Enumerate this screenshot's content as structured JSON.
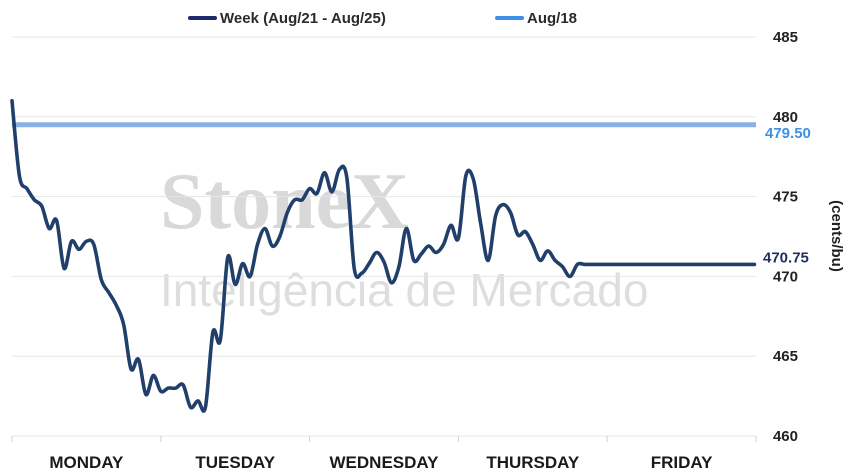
{
  "watermark": {
    "brand": "StoneX",
    "tagline": "Inteligência de Mercado"
  },
  "chart_data": {
    "type": "line",
    "ylabel": "(cents/bu)",
    "ylim": [
      460,
      485
    ],
    "yticks": [
      460,
      465,
      470,
      475,
      480,
      485
    ],
    "categories": [
      "MONDAY",
      "TUESDAY",
      "WEDNESDAY",
      "THURSDAY",
      "FRIDAY"
    ],
    "legend_position": "top",
    "grid": true,
    "series": [
      {
        "name": "Week (Aug/21 - Aug/25)",
        "color": "#213f6b",
        "end_label": "470.75",
        "x": [
          0,
          0.05,
          0.1,
          0.15,
          0.2,
          0.25,
          0.3,
          0.35,
          0.4,
          0.45,
          0.5,
          0.55,
          0.6,
          0.65,
          0.7,
          0.75,
          0.8,
          0.85,
          0.9,
          0.95,
          1.0,
          1.05,
          1.1,
          1.15,
          1.2,
          1.25,
          1.3,
          1.35,
          1.4,
          1.45,
          1.5,
          1.55,
          1.6,
          1.65,
          1.7,
          1.75,
          1.8,
          1.85,
          1.9,
          1.95,
          2.0,
          2.05,
          2.1,
          2.15,
          2.2,
          2.25,
          2.3,
          2.35,
          2.4,
          2.45,
          2.5,
          2.55,
          2.6,
          2.65,
          2.7,
          2.75,
          2.8,
          2.85,
          2.9,
          2.95,
          3.0,
          3.05,
          3.1,
          3.15,
          3.2,
          3.25,
          3.3,
          3.35,
          3.4,
          3.45,
          3.5,
          3.55,
          3.6,
          3.65,
          3.7,
          3.75,
          3.8,
          3.85,
          3.9,
          3.95,
          4.0,
          4.05,
          4.1,
          4.15,
          4.2,
          4.25,
          4.3,
          4.35,
          4.4,
          4.45,
          4.5,
          4.55,
          4.6,
          4.65,
          4.7,
          4.75,
          4.8,
          4.85,
          4.9,
          4.95,
          4.99
        ],
        "values": [
          481.0,
          476.3,
          475.5,
          474.8,
          474.4,
          473.0,
          473.5,
          470.5,
          472.2,
          471.7,
          472.2,
          472.0,
          469.8,
          469.0,
          468.2,
          467.0,
          464.2,
          464.8,
          462.6,
          463.8,
          462.8,
          463.0,
          463.0,
          463.2,
          461.8,
          462.2,
          461.8,
          466.5,
          466.0,
          471.2,
          469.5,
          470.8,
          470.0,
          472.0,
          473.0,
          471.9,
          472.5,
          474.0,
          474.8,
          474.8,
          475.5,
          475.2,
          476.5,
          475.3,
          476.7,
          476.2,
          470.5,
          470.2,
          470.8,
          471.5,
          470.9,
          469.6,
          470.6,
          473.0,
          471.0,
          471.4,
          471.9,
          471.5,
          472.0,
          473.2,
          472.4,
          476.3,
          476.1,
          473.3,
          471.0,
          473.8,
          474.5,
          474.0,
          472.6,
          472.8,
          472.0,
          471.0,
          471.6,
          471.0,
          470.6,
          470.0,
          470.75,
          470.75,
          470.75,
          470.75,
          470.75,
          470.75,
          470.75,
          470.75,
          470.75,
          470.75,
          470.75,
          470.75,
          470.75,
          470.75,
          470.75,
          470.75,
          470.75,
          470.75,
          470.75,
          470.75,
          470.75,
          470.75,
          470.75,
          470.75,
          470.75
        ]
      },
      {
        "name": "Aug/18",
        "color": "#8ab0e6",
        "legend_color": "#3e8fe8",
        "end_label": "479.50",
        "end_label_color": "#3e8fe8",
        "x": [
          0,
          5
        ],
        "values": [
          479.5,
          479.5
        ]
      }
    ]
  }
}
